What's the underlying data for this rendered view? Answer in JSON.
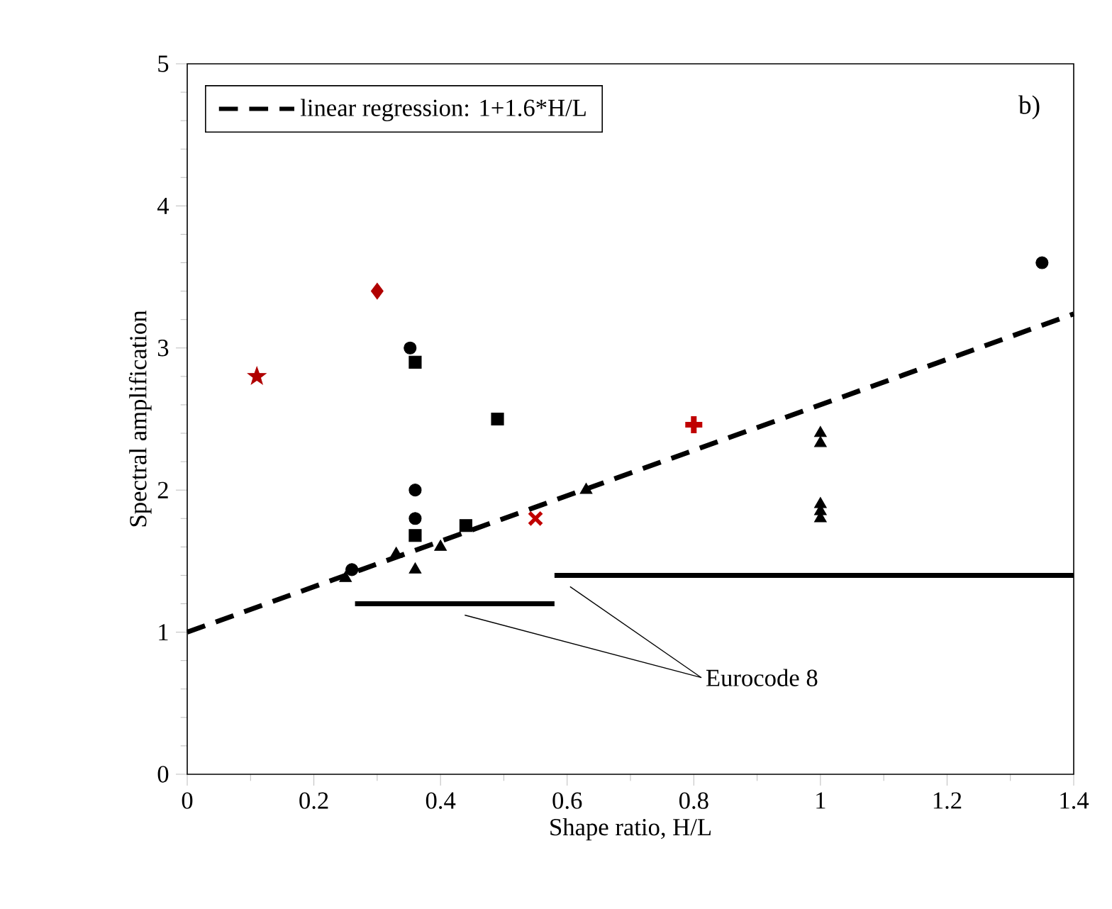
{
  "chart_data": {
    "type": "scatter",
    "xlabel": "Shape ratio, H/L",
    "ylabel": "Spectral amplification",
    "xlim": [
      0,
      1.4
    ],
    "ylim": [
      0,
      5
    ],
    "xticks": [
      0,
      0.2,
      0.4,
      0.6,
      0.8,
      1,
      1.2,
      1.4
    ],
    "yticks": [
      0,
      1,
      2,
      3,
      4,
      5
    ],
    "grid": false,
    "legend": "top left",
    "annotations": [
      "b)",
      "Eurocode 8"
    ],
    "series": [
      {
        "type": "line",
        "name": "linear regression: 1+1.6*H/L",
        "color": "#000000",
        "line_style": "dashed",
        "marker": "none",
        "x": [
          0,
          1.4
        ],
        "values": [
          1,
          3.24
        ]
      },
      {
        "type": "line",
        "color": "#000000",
        "line_style": "solid",
        "marker": "none",
        "x": [
          0.265,
          0.58
        ],
        "values": [
          1.2,
          1.2
        ]
      },
      {
        "type": "line",
        "color": "#000000",
        "line_style": "solid",
        "marker": "none",
        "x": [
          0.58,
          1.4
        ],
        "values": [
          1.4,
          1.4
        ]
      },
      {
        "color": "#000000",
        "marker": "circle",
        "x": [
          0.26,
          0.352,
          0.36,
          0.36,
          1.35
        ],
        "values": [
          1.44,
          3.0,
          2.0,
          1.8,
          3.6
        ]
      },
      {
        "color": "#000000",
        "marker": "square",
        "x": [
          0.36,
          0.49,
          0.44,
          0.36
        ],
        "values": [
          2.9,
          2.5,
          1.75,
          1.68
        ]
      },
      {
        "color": "#000000",
        "marker": "triangle",
        "x": [
          0.25,
          0.33,
          0.36,
          0.4,
          0.63,
          1,
          1,
          1,
          1,
          1
        ],
        "values": [
          1.38,
          1.55,
          1.44,
          1.6,
          2.0,
          2.4,
          2.33,
          1.9,
          1.85,
          1.8
        ]
      },
      {
        "color": "#b00000",
        "marker": "star",
        "x": [
          0.11
        ],
        "values": [
          2.8
        ]
      },
      {
        "color": "#b00000",
        "marker": "diamond",
        "x": [
          0.3
        ],
        "values": [
          3.4
        ]
      },
      {
        "color": "#c00000",
        "marker": "cross",
        "x": [
          0.55
        ],
        "values": [
          1.8
        ]
      },
      {
        "color": "#c00000",
        "marker": "plus",
        "x": [
          0.8
        ],
        "values": [
          2.46
        ]
      }
    ]
  }
}
